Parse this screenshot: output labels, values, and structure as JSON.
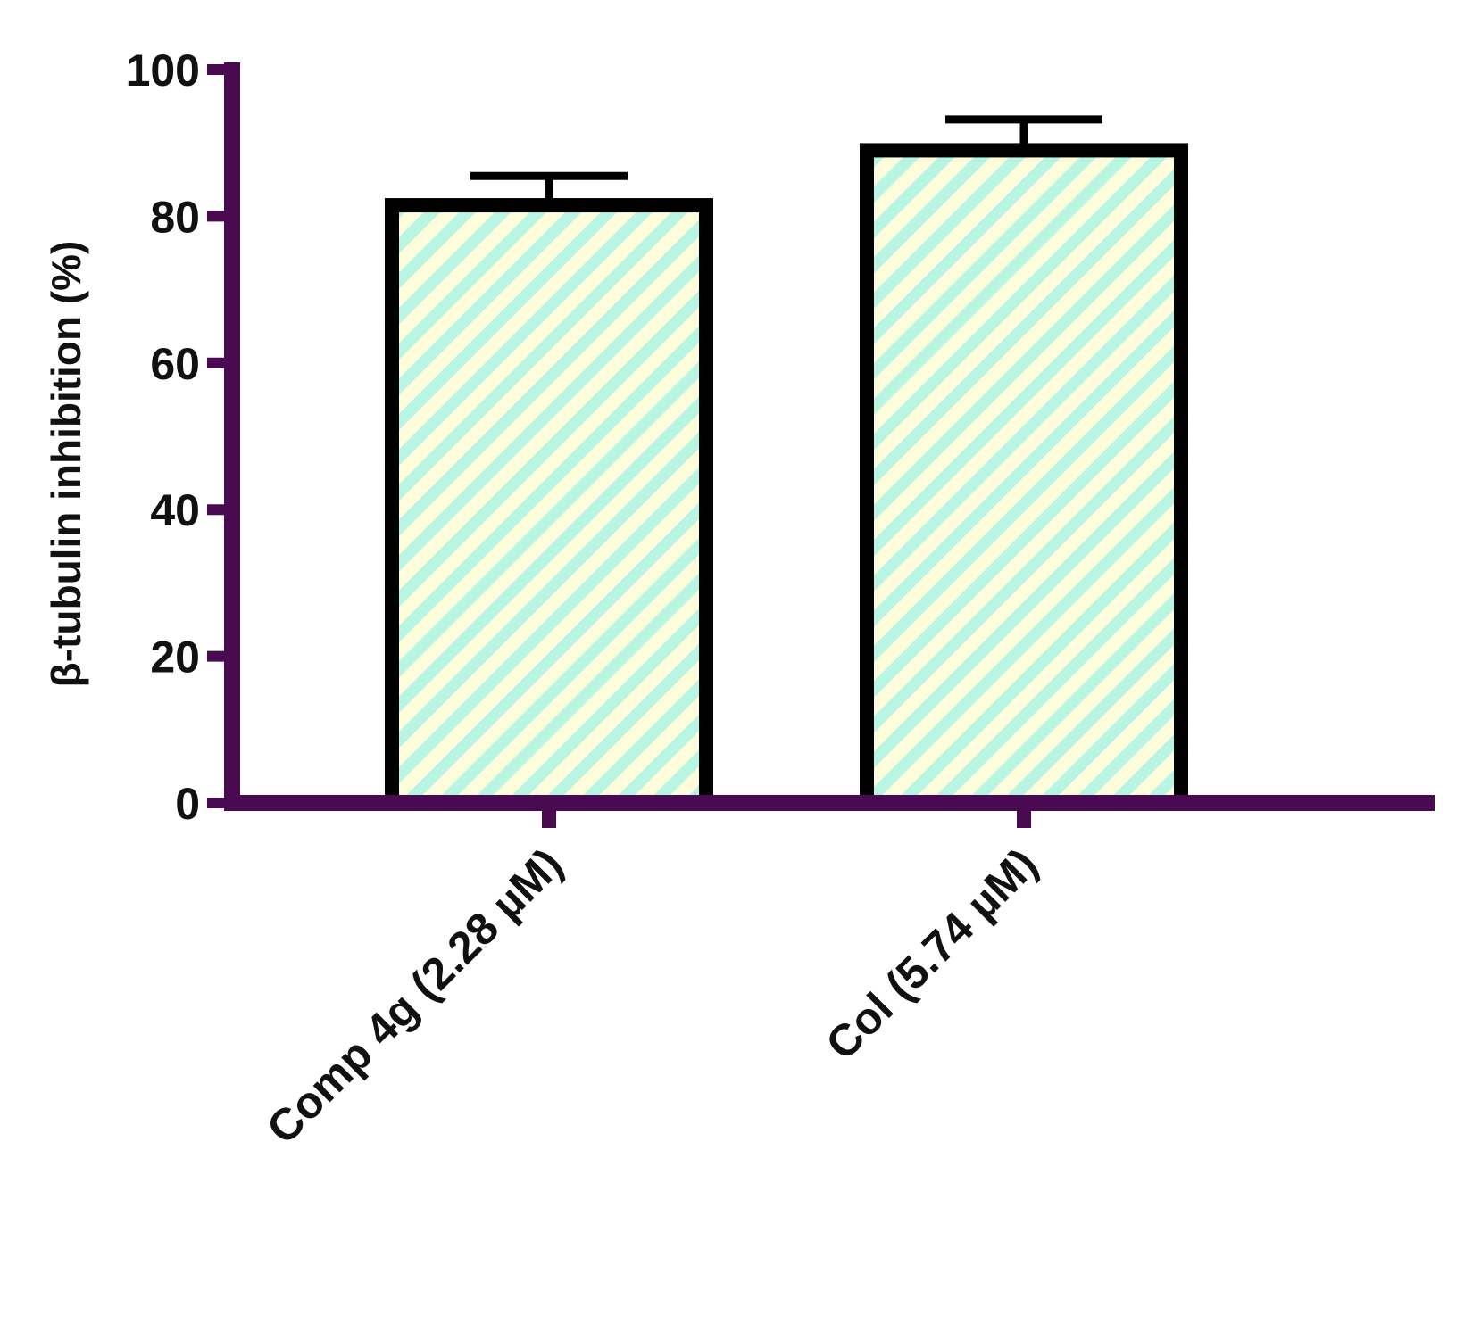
{
  "chart_data": {
    "type": "bar",
    "categories": [
      "Comp 4g (2.28 µM)",
      "Col (5.74 µM)"
    ],
    "values": [
      81.5,
      89.0
    ],
    "error": [
      4.0,
      4.2
    ],
    "title": "",
    "xlabel": "",
    "ylabel": "β-tubulin inhibition (%)",
    "ylim": [
      0,
      100
    ],
    "yticks": [
      0,
      20,
      40,
      60,
      80,
      100
    ],
    "ytick_labels": [
      "0",
      "20",
      "40",
      "60",
      "80",
      "100"
    ],
    "grid": false,
    "legend": "none"
  },
  "colors": {
    "axis": "#4a0a52",
    "bar_outline": "#000000",
    "hatch_a": "#fdfddc",
    "hatch_b": "#b8f5e3"
  }
}
